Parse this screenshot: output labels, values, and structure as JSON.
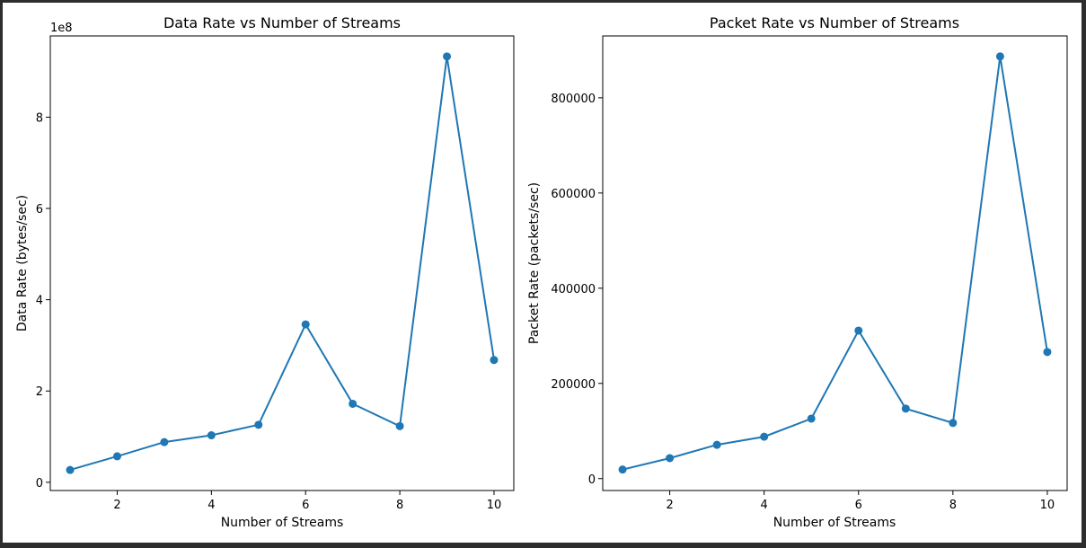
{
  "chart_data": [
    {
      "type": "line",
      "title": "Data Rate vs Number of Streams",
      "xlabel": "Number of Streams",
      "ylabel": "Data Rate (bytes/sec)",
      "offset_label": "1e8",
      "x": [
        1,
        2,
        3,
        4,
        5,
        6,
        7,
        8,
        9,
        10
      ],
      "y": [
        27000000,
        57000000,
        88000000,
        103000000,
        126000000,
        346000000,
        172000000,
        123000000,
        933000000,
        268000000
      ],
      "xlim": [
        0.58,
        10.42
      ],
      "ylim": [
        -18000000,
        978000000
      ],
      "xticks": [
        2,
        4,
        6,
        8,
        10
      ],
      "xtick_labels": [
        "2",
        "4",
        "6",
        "8",
        "10"
      ],
      "yticks": [
        0,
        200000000,
        400000000,
        600000000,
        800000000
      ],
      "ytick_labels": [
        "0",
        "2",
        "4",
        "6",
        "8"
      ],
      "grid": false,
      "marker": "circle",
      "color": "#1f77b4"
    },
    {
      "type": "line",
      "title": "Packet Rate vs Number of Streams",
      "xlabel": "Number of Streams",
      "ylabel": "Packet Rate (packets/sec)",
      "offset_label": "",
      "x": [
        1,
        2,
        3,
        4,
        5,
        6,
        7,
        8,
        9,
        10
      ],
      "y": [
        19000,
        43000,
        71000,
        88000,
        126000,
        311000,
        147000,
        117000,
        887000,
        266000
      ],
      "xlim": [
        0.58,
        10.42
      ],
      "ylim": [
        -25000,
        930000
      ],
      "xticks": [
        2,
        4,
        6,
        8,
        10
      ],
      "xtick_labels": [
        "2",
        "4",
        "6",
        "8",
        "10"
      ],
      "yticks": [
        0,
        200000,
        400000,
        600000,
        800000
      ],
      "ytick_labels": [
        "0",
        "200000",
        "400000",
        "600000",
        "800000"
      ],
      "grid": false,
      "marker": "circle",
      "color": "#1f77b4"
    }
  ]
}
